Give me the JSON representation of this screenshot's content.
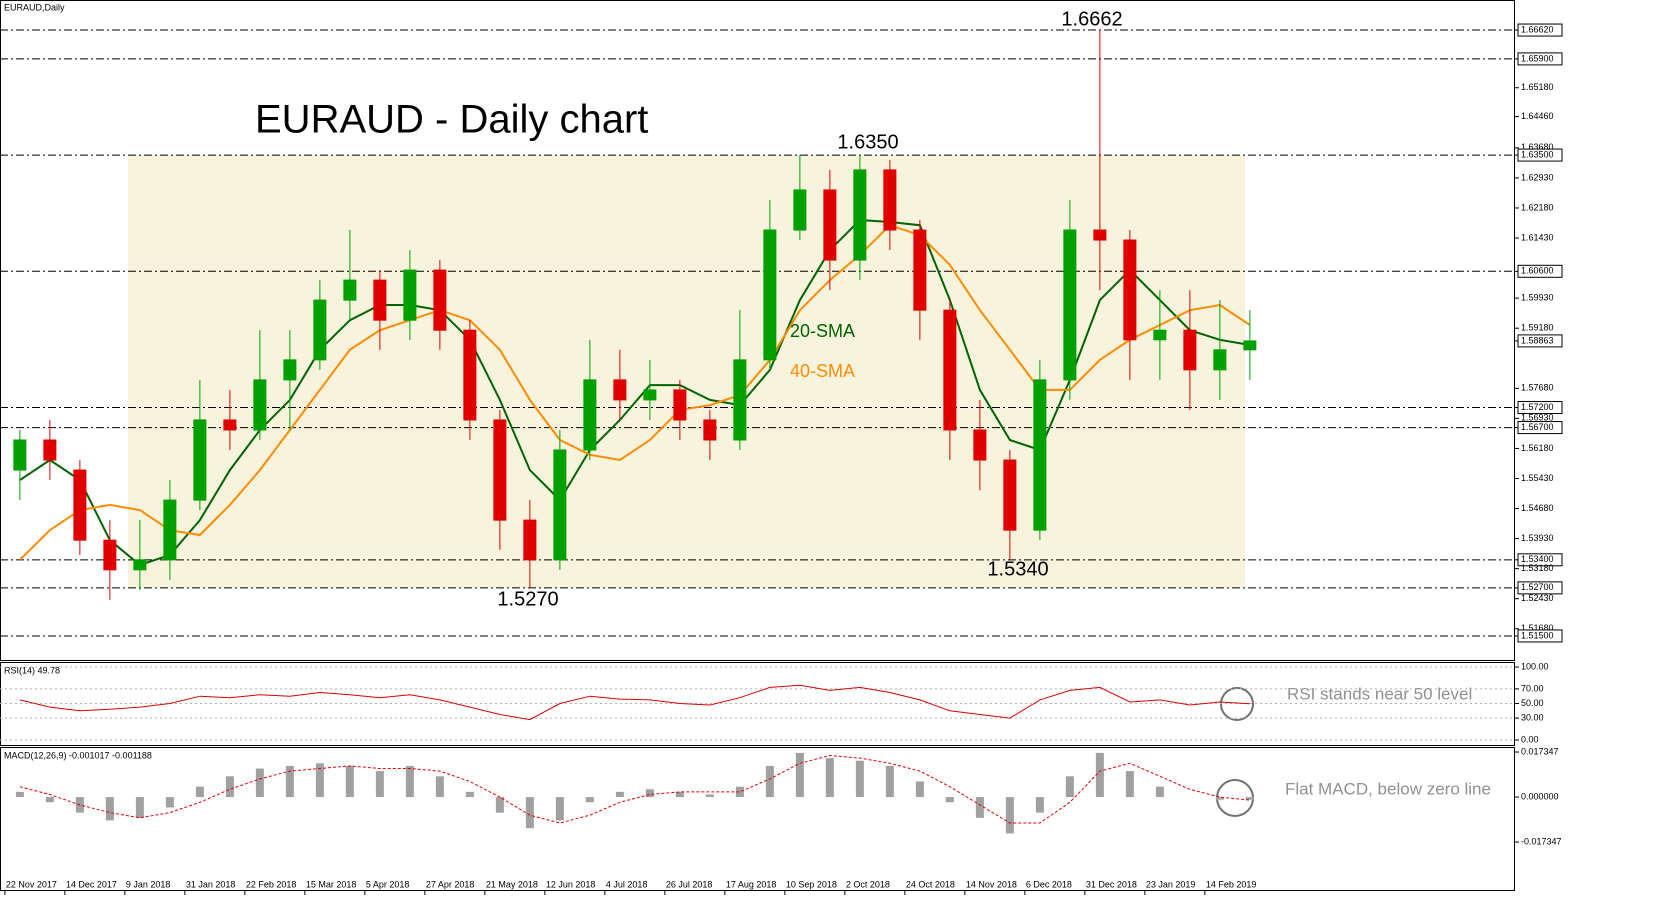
{
  "chart_data": [
    {
      "type": "candlestick",
      "header": "EURAUD,Daily",
      "title": "EURAUD - Daily chart",
      "annotations": [
        "1.6662",
        "1.6350",
        "1.5270",
        "1.5340"
      ],
      "x": [
        4,
        12,
        20,
        28,
        36,
        44,
        52,
        60,
        68,
        76,
        84,
        92,
        100,
        108,
        116,
        124,
        132,
        140,
        148,
        156,
        164,
        172,
        180,
        188,
        196,
        204,
        212,
        220,
        228,
        236,
        244,
        252,
        260,
        268,
        276,
        284,
        292,
        300,
        308,
        316,
        324,
        332
      ],
      "open": [
        1.5564,
        1.5639,
        1.5564,
        1.5389,
        1.5315,
        1.534,
        1.5489,
        1.5689,
        1.5664,
        1.5789,
        1.5839,
        1.5988,
        1.6038,
        1.5938,
        1.6063,
        1.5913,
        1.5689,
        1.5439,
        1.534,
        1.5614,
        1.5789,
        1.5739,
        1.5764,
        1.5689,
        1.5639,
        1.5839,
        1.6163,
        1.6263,
        1.6088,
        1.6313,
        1.6163,
        1.5963,
        1.5664,
        1.5589,
        1.5414,
        1.5789,
        1.6163,
        1.6138,
        1.5889,
        1.5913,
        1.5814,
        1.5864
      ],
      "high": [
        1.5664,
        1.5689,
        1.5589,
        1.5439,
        1.5439,
        1.5539,
        1.5789,
        1.5764,
        1.5913,
        1.5913,
        1.6038,
        1.6163,
        1.6063,
        1.6113,
        1.6088,
        1.5938,
        1.5714,
        1.5489,
        1.5664,
        1.5889,
        1.5864,
        1.5839,
        1.5789,
        1.5714,
        1.5963,
        1.6238,
        1.635,
        1.6313,
        1.635,
        1.6338,
        1.6188,
        1.5988,
        1.5739,
        1.5614,
        1.5839,
        1.6238,
        1.6662,
        1.6163,
        1.6013,
        1.6013,
        1.5988,
        1.5963
      ],
      "low": [
        1.5489,
        1.5539,
        1.5352,
        1.524,
        1.5265,
        1.529,
        1.5464,
        1.5614,
        1.5639,
        1.5664,
        1.5814,
        1.5938,
        1.5864,
        1.5889,
        1.5864,
        1.5639,
        1.5365,
        1.527,
        1.5315,
        1.5589,
        1.5689,
        1.5689,
        1.5639,
        1.5589,
        1.5614,
        1.5814,
        1.6138,
        1.6013,
        1.6038,
        1.6113,
        1.5889,
        1.5589,
        1.5514,
        1.534,
        1.5389,
        1.5739,
        1.6013,
        1.5789,
        1.5789,
        1.5714,
        1.5739,
        1.5789
      ],
      "close": [
        1.5639,
        1.5589,
        1.5389,
        1.5315,
        1.534,
        1.5489,
        1.5689,
        1.5664,
        1.5789,
        1.5839,
        1.5988,
        1.6038,
        1.5938,
        1.6063,
        1.5913,
        1.5689,
        1.5439,
        1.534,
        1.5614,
        1.5789,
        1.5739,
        1.5764,
        1.5689,
        1.5639,
        1.5839,
        1.6163,
        1.6263,
        1.6088,
        1.6313,
        1.6163,
        1.5963,
        1.5664,
        1.5589,
        1.5414,
        1.5789,
        1.6163,
        1.6138,
        1.5889,
        1.5913,
        1.5814,
        1.5864,
        1.58863
      ],
      "up_color": "#00a000",
      "down_color": "#e00000",
      "series": [
        {
          "name": "20-SMA",
          "color": "#006400",
          "values": [
            1.5539,
            1.5589,
            1.5539,
            1.5389,
            1.5327,
            1.5352,
            1.5439,
            1.5564,
            1.5664,
            1.5739,
            1.5864,
            1.5938,
            1.5976,
            1.5976,
            1.5963,
            1.5889,
            1.5739,
            1.5564,
            1.5489,
            1.5614,
            1.5689,
            1.5776,
            1.5776,
            1.5739,
            1.5726,
            1.5814,
            1.5988,
            1.6113,
            1.6188,
            1.6183,
            1.6175,
            1.5988,
            1.5764,
            1.5639,
            1.5614,
            1.5789,
            1.5988,
            1.6063,
            1.5988,
            1.5913,
            1.5889,
            1.5876
          ]
        },
        {
          "name": "40-SMA",
          "color": "#ff8c00",
          "values": [
            1.534,
            1.5414,
            1.5464,
            1.5477,
            1.5464,
            1.5414,
            1.5402,
            1.5477,
            1.5564,
            1.5664,
            1.5764,
            1.5864,
            1.5913,
            1.5938,
            1.5963,
            1.5938,
            1.5864,
            1.5739,
            1.5639,
            1.5602,
            1.5589,
            1.5639,
            1.5714,
            1.5726,
            1.5751,
            1.5839,
            1.5963,
            1.6038,
            1.6101,
            1.6175,
            1.615,
            1.6076,
            1.5963,
            1.5864,
            1.5764,
            1.5764,
            1.5839,
            1.5889,
            1.5926,
            1.5963,
            1.5976,
            1.5926
          ]
        }
      ],
      "levels": [
        1.6662,
        1.659,
        1.635,
        1.606,
        1.572,
        1.567,
        1.534,
        1.527,
        1.515
      ],
      "xlim": [
        -1.3,
        402.7
      ],
      "ylim": [
        1.509,
        1.6737
      ],
      "yticks": [
        {
          "value": 1.6662,
          "label": "1.66620"
        },
        {
          "value": 1.659,
          "label": "1.65900"
        },
        {
          "value": 1.6518,
          "label": "1.65180"
        },
        {
          "value": 1.6446,
          "label": "1.64460"
        },
        {
          "value": 1.6368,
          "label": "1.63680"
        },
        {
          "value": 1.635,
          "label": "1.63500"
        },
        {
          "value": 1.6293,
          "label": "1.62930"
        },
        {
          "value": 1.6218,
          "label": "1.62180"
        },
        {
          "value": 1.6143,
          "label": "1.61430"
        },
        {
          "value": 1.606,
          "label": "1.60600"
        },
        {
          "value": 1.5993,
          "label": "1.59930"
        },
        {
          "value": 1.5918,
          "label": "1.59180"
        },
        {
          "value": 1.58863,
          "label": "1.58863"
        },
        {
          "value": 1.5768,
          "label": "1.57680"
        },
        {
          "value": 1.572,
          "label": "1.57200"
        },
        {
          "value": 1.5693,
          "label": "1.56930"
        },
        {
          "value": 1.567,
          "label": "1.56700"
        },
        {
          "value": 1.5618,
          "label": "1.56180"
        },
        {
          "value": 1.5543,
          "label": "1.55430"
        },
        {
          "value": 1.5468,
          "label": "1.54680"
        },
        {
          "value": 1.5393,
          "label": "1.53930"
        },
        {
          "value": 1.534,
          "label": "1.53400"
        },
        {
          "value": 1.5318,
          "label": "1.53180"
        },
        {
          "value": 1.527,
          "label": "1.52700"
        },
        {
          "value": 1.5243,
          "label": "1.52430"
        },
        {
          "value": 1.5168,
          "label": "1.51680"
        },
        {
          "value": 1.515,
          "label": "1.51500"
        }
      ],
      "xticks": [
        {
          "value": 0,
          "label": "22 Nov 2017"
        },
        {
          "value": 16,
          "label": "14 Dec 2017"
        },
        {
          "value": 32,
          "label": "9 Jan 2018"
        },
        {
          "value": 48,
          "label": "31 Jan 2018"
        },
        {
          "value": 64,
          "label": "22 Feb 2018"
        },
        {
          "value": 80,
          "label": "15 Mar 2018"
        },
        {
          "value": 96,
          "label": "5 Apr 2018"
        },
        {
          "value": 112,
          "label": "27 Apr 2018"
        },
        {
          "value": 128,
          "label": "21 May 2018"
        },
        {
          "value": 144,
          "label": "12 Jun 2018"
        },
        {
          "value": 160,
          "label": "4 Jul 2018"
        },
        {
          "value": 176,
          "label": "26 Jul 2018"
        },
        {
          "value": 192,
          "label": "17 Aug 2018"
        },
        {
          "value": 208,
          "label": "10 Sep 2018"
        },
        {
          "value": 224,
          "label": "2 Oct 2018"
        },
        {
          "value": 240,
          "label": "24 Oct 2018"
        },
        {
          "value": 256,
          "label": "14 Nov 2018"
        },
        {
          "value": 272,
          "label": "6 Dec 2018"
        },
        {
          "value": 288,
          "label": "31 Dec 2018"
        },
        {
          "value": 304,
          "label": "23 Jan 2019"
        },
        {
          "value": 320,
          "label": "14 Feb 2019"
        }
      ]
    },
    {
      "type": "line",
      "title": "RSI(14) 49.78",
      "annotation": "RSI stands near 50 level",
      "color": "#e00000",
      "values": [
        55,
        45,
        40,
        42,
        45,
        50,
        60,
        58,
        62,
        60,
        65,
        62,
        58,
        62,
        55,
        45,
        35,
        28,
        50,
        60,
        56,
        55,
        50,
        48,
        58,
        72,
        75,
        68,
        72,
        65,
        55,
        40,
        35,
        30,
        55,
        68,
        72,
        52,
        55,
        48,
        52,
        49.78
      ],
      "ylim": [
        0,
        100
      ],
      "yticks": [
        {
          "value": 100,
          "label": "100.00"
        },
        {
          "value": 70,
          "label": "70.00"
        },
        {
          "value": 50,
          "label": "50.00"
        },
        {
          "value": 30,
          "label": "30.00"
        },
        {
          "value": 0,
          "label": "0.00"
        }
      ]
    },
    {
      "type": "macd",
      "title": "MACD(12,26,9) -0.001017 -0.001188",
      "annotation": "Flat MACD, below zero line",
      "color": "#a0a0a0",
      "signal_color": "#e00000",
      "values": [
        0.002,
        -0.002,
        -0.006,
        -0.009,
        -0.008,
        -0.004,
        0.004,
        0.008,
        0.011,
        0.012,
        0.013,
        0.012,
        0.01,
        0.012,
        0.008,
        0.002,
        -0.006,
        -0.012,
        -0.009,
        -0.002,
        0.002,
        0.003,
        0.002,
        0.001,
        0.004,
        0.012,
        0.017,
        0.015,
        0.014,
        0.012,
        0.006,
        -0.002,
        -0.008,
        -0.014,
        -0.006,
        0.008,
        0.017,
        0.01,
        0.004,
        0,
        -0.001,
        -0.001017
      ],
      "signal": [
        0.004,
        0.001,
        -0.003,
        -0.006,
        -0.008,
        -0.006,
        -0.002,
        0.003,
        0.007,
        0.01,
        0.011,
        0.012,
        0.011,
        0.011,
        0.01,
        0.006,
        0,
        -0.007,
        -0.01,
        -0.007,
        -0.002,
        0.001,
        0.002,
        0.002,
        0.002,
        0.007,
        0.013,
        0.016,
        0.015,
        0.013,
        0.01,
        0.004,
        -0.003,
        -0.01,
        -0.01,
        -0.002,
        0.01,
        0.013,
        0.008,
        0.003,
        0,
        -0.001188
      ],
      "ylim": [
        -0.0358,
        0.0189
      ],
      "yticks": [
        {
          "value": 0.017347,
          "label": "0.017347"
        },
        {
          "value": 0,
          "label": "0.000000"
        },
        {
          "value": -0.017347,
          "label": "-0.017347"
        }
      ]
    }
  ]
}
